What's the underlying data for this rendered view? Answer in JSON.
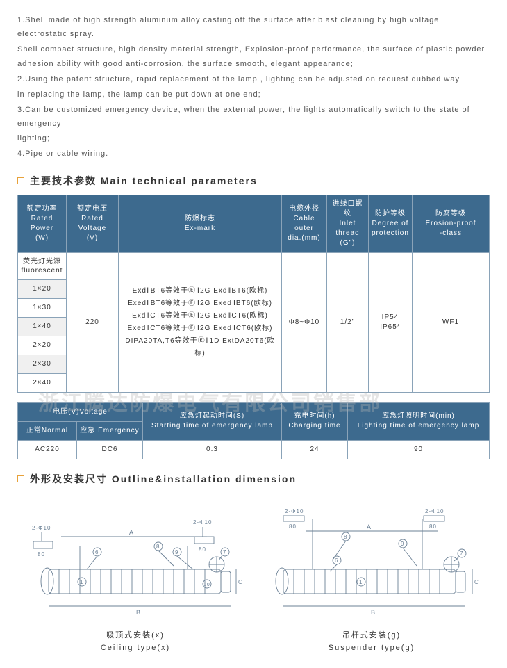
{
  "features": [
    "1.Shell made of high strength aluminum alloy casting off the surface after blast cleaning by high voltage electrostatic spray.",
    "Shell compact structure, high density material strength, Explosion-proof performance, the surface of plastic powder",
    "adhesion ability with good anti-corrosion, the surface smooth, elegant appearance;",
    "2.Using the patent structure, rapid replacement of the lamp , lighting can be adjusted on request dubbed way",
    "in replacing the lamp, the lamp can be put down at one end;",
    "3.Can be customized emergency device, when the external power, the lights automatically switch to the state of emergency",
    "lighting;",
    "4.Pipe or cable wiring."
  ],
  "section1": "主要技术参数 Main technical parameters",
  "t1": {
    "h": [
      "额定功率\nRated Power\n(W)",
      "额定电压\nRated Voltage\n(V)",
      "防爆标志\nEx-mark",
      "电缆外径\nCable outer\ndia.(mm)",
      "进线口螺纹\nInlet thread\n(G\")",
      "防护等级\nDegree of\nprotection",
      "防腐等级\nErosion-proof\n-class"
    ],
    "cat": "荧光灯光源\nfluorescent",
    "rows": [
      "1×20",
      "1×30",
      "1×40",
      "2×20",
      "2×30",
      "2×40"
    ],
    "voltage": "220",
    "ex": [
      "ExdⅡBT6等效于ⒺⅡ2G ExdⅡBT6(欧标)",
      "ExedⅡBT6等效于ⒺⅡ2G ExedⅡBT6(欧标)",
      "ExdⅡCT6等效于ⒺⅡ2G ExdⅡCT6(欧标)",
      "ExedⅡCT6等效于ⒺⅡ2G ExedⅡCT6(欧标)",
      "DIPA20TA,T6等效于ⒺⅡ1D ExtDA20T6(欧标)"
    ],
    "dia": "Φ8~Φ10",
    "inlet": "1/2\"",
    "protect": "IP54\nIP65*",
    "erosion": "WF1"
  },
  "t2": {
    "h1a": "电压(V)Voltage",
    "h1b": "正常Normal",
    "h1c": "应急 Emergency",
    "h2": "应急灯起动时间(S)\nStarting time of emergency lamp",
    "h3": "充电时间(h)\nCharging time",
    "h4": "应急灯照明时间(min)\nLighting time of emergency lamp",
    "v1": "AC220",
    "v2": "DC6",
    "v3": "0.3",
    "v4": "24",
    "v5": "90"
  },
  "watermark": "浙江腾达防爆电气有限公司销售部",
  "section2": "外形及安装尺寸 Outline&installation dimension",
  "diag1": "吸顶式安装(x)\nCeiling type(x)",
  "diag2": "吊杆式安装(g)\nSuspender type(g)",
  "dim_labels": {
    "bolt": "2-Φ10",
    "eighty": "80"
  },
  "colors": {
    "header_bg": "#3d6a8e",
    "border": "#8aa3b8",
    "marker": "#e8a23a",
    "diagram_stroke": "#6b8095"
  }
}
